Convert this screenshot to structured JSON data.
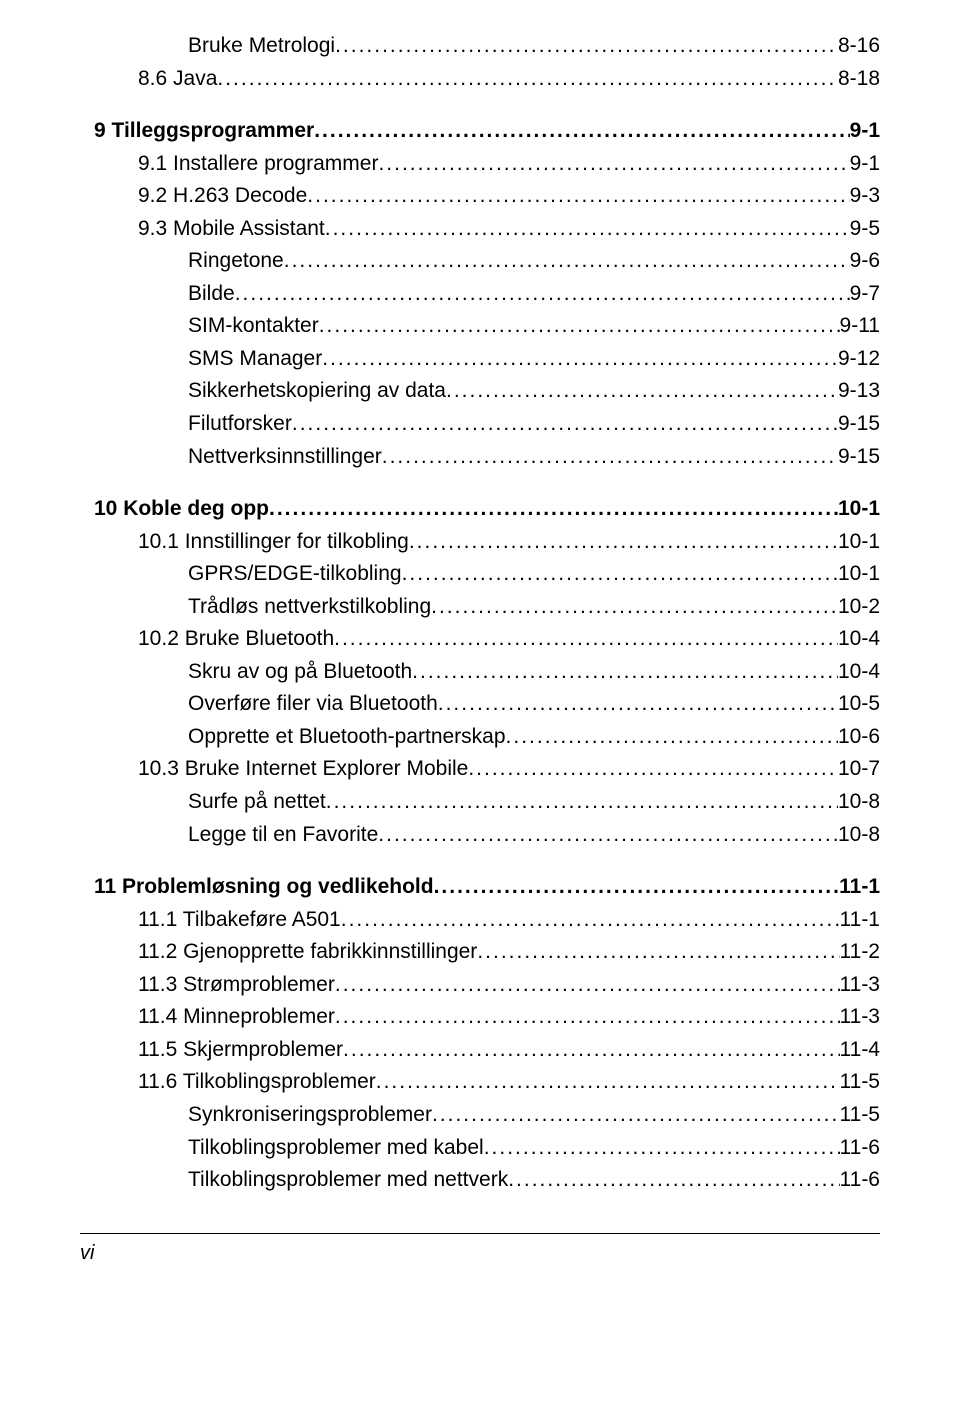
{
  "toc": [
    {
      "indent": 2,
      "bold": false,
      "label": "Bruke Metrologi",
      "page": "8-16"
    },
    {
      "indent": 1,
      "bold": false,
      "label": "8.6  Java",
      "page": "8-18"
    },
    {
      "gap": true
    },
    {
      "indent": 0,
      "bold": true,
      "label": "9   Tilleggsprogrammer",
      "page": "9-1"
    },
    {
      "indent": 1,
      "bold": false,
      "label": "9.1  Installere programmer",
      "page": "9-1"
    },
    {
      "indent": 1,
      "bold": false,
      "label": "9.2  H.263 Decode",
      "page": "9-3"
    },
    {
      "indent": 1,
      "bold": false,
      "label": "9.3  Mobile Assistant",
      "page": "9-5"
    },
    {
      "indent": 2,
      "bold": false,
      "label": "Ringetone",
      "page": "9-6"
    },
    {
      "indent": 2,
      "bold": false,
      "label": "Bilde",
      "page": "9-7"
    },
    {
      "indent": 2,
      "bold": false,
      "label": "SIM-kontakter",
      "page": "9-11"
    },
    {
      "indent": 2,
      "bold": false,
      "label": "SMS Manager",
      "page": "9-12"
    },
    {
      "indent": 2,
      "bold": false,
      "label": "Sikkerhetskopiering av data",
      "page": "9-13"
    },
    {
      "indent": 2,
      "bold": false,
      "label": "Filutforsker",
      "page": "9-15"
    },
    {
      "indent": 2,
      "bold": false,
      "label": "Nettverksinnstillinger",
      "page": "9-15"
    },
    {
      "gap": true
    },
    {
      "indent": 0,
      "bold": true,
      "label": "10  Koble deg opp",
      "page": "10-1"
    },
    {
      "indent": 1,
      "bold": false,
      "label": "10.1 Innstillinger for tilkobling",
      "page": "10-1"
    },
    {
      "indent": 2,
      "bold": false,
      "label": "GPRS/EDGE-tilkobling",
      "page": "10-1"
    },
    {
      "indent": 2,
      "bold": false,
      "label": "Trådløs nettverkstilkobling",
      "page": "10-2"
    },
    {
      "indent": 1,
      "bold": false,
      "label": "10.2 Bruke Bluetooth",
      "page": "10-4"
    },
    {
      "indent": 2,
      "bold": false,
      "label": "Skru av og på Bluetooth",
      "page": "10-4"
    },
    {
      "indent": 2,
      "bold": false,
      "label": "Overføre filer via Bluetooth",
      "page": "10-5"
    },
    {
      "indent": 2,
      "bold": false,
      "label": "Opprette et Bluetooth-partnerskap",
      "page": "10-6"
    },
    {
      "indent": 1,
      "bold": false,
      "label": "10.3 Bruke Internet Explorer Mobile",
      "page": "10-7"
    },
    {
      "indent": 2,
      "bold": false,
      "label": "Surfe på nettet",
      "page": "10-8"
    },
    {
      "indent": 2,
      "bold": false,
      "label": "Legge til en Favorite",
      "page": "10-8"
    },
    {
      "gap": true
    },
    {
      "indent": 0,
      "bold": true,
      "label": "11  Problemløsning og vedlikehold",
      "page": "11-1"
    },
    {
      "indent": 1,
      "bold": false,
      "label": "11.1 Tilbakeføre A501",
      "page": "11-1"
    },
    {
      "indent": 1,
      "bold": false,
      "label": "11.2 Gjenopprette fabrikkinnstillinger",
      "page": "11-2"
    },
    {
      "indent": 1,
      "bold": false,
      "label": "11.3 Strømproblemer",
      "page": "11-3"
    },
    {
      "indent": 1,
      "bold": false,
      "label": "11.4 Minneproblemer",
      "page": "11-3"
    },
    {
      "indent": 1,
      "bold": false,
      "label": "11.5 Skjermproblemer",
      "page": "11-4"
    },
    {
      "indent": 1,
      "bold": false,
      "label": "11.6 Tilkoblingsproblemer",
      "page": "11-5"
    },
    {
      "indent": 2,
      "bold": false,
      "label": "Synkroniseringsproblemer",
      "page": "11-5"
    },
    {
      "indent": 2,
      "bold": false,
      "label": "Tilkoblingsproblemer med kabel",
      "page": "11-6"
    },
    {
      "indent": 2,
      "bold": false,
      "label": "Tilkoblingsproblemer med nettverk",
      "page": "11-6"
    }
  ],
  "footer": "vi"
}
